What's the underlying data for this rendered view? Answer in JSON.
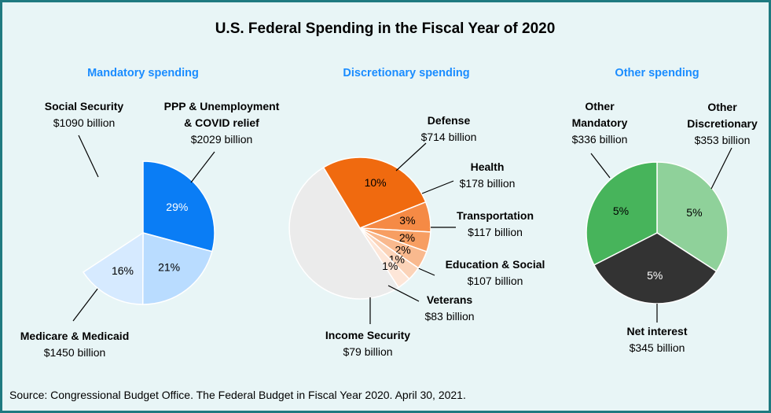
{
  "chart_data": {
    "type": "pie",
    "title": "U.S. Federal Spending in the Fiscal Year of 2020",
    "source": "Source: Congressional Budget Office. The Federal Budget in Fiscal Year 2020. April 30, 2021.",
    "charts": [
      {
        "id": "mandatory",
        "title": "Mandatory spending",
        "unit": "billion",
        "slices": [
          {
            "name_lines": [
              "PPP & Unemployment",
              "& COVID relief"
            ],
            "value_text": "$2029 billion",
            "value": 2029,
            "percent": "29%",
            "color": "#0a7df5",
            "pct_color": "#ffffff"
          },
          {
            "name_lines": [
              "Medicare & Medicaid"
            ],
            "value_text": "$1450 billion",
            "value": 1450,
            "percent": "21%",
            "color": "#b9dcff",
            "pct_color": "#000000"
          },
          {
            "name_lines": [
              "Social Security"
            ],
            "value_text": "$1090 billion",
            "value": 1090,
            "percent": "16%",
            "color": "#d6eaff",
            "pct_color": "#000000"
          }
        ]
      },
      {
        "id": "discretionary",
        "title": "Discretionary spending",
        "unit": "billion",
        "slices": [
          {
            "name_lines": [
              "Defense"
            ],
            "value_text": "$714 billion",
            "value": 714,
            "percent": "10%",
            "color": "#f06a0f",
            "pct_color": "#000000"
          },
          {
            "name_lines": [
              "Health"
            ],
            "value_text": "$178 billion",
            "value": 178,
            "percent": "3%",
            "color": "#f58a45",
            "pct_color": "#000000"
          },
          {
            "name_lines": [
              "Transportation"
            ],
            "value_text": "$117 billion",
            "value": 117,
            "percent": "2%",
            "color": "#f79e62",
            "pct_color": "#000000"
          },
          {
            "name_lines": [
              "Education & Social"
            ],
            "value_text": "$107 billion",
            "value": 107,
            "percent": "2%",
            "color": "#f9b98e",
            "pct_color": "#000000"
          },
          {
            "name_lines": [
              "Veterans"
            ],
            "value_text": "$83 billion",
            "value": 83,
            "percent": "1%",
            "color": "#fbd3b8",
            "pct_color": "#000000"
          },
          {
            "name_lines": [
              "Income Security"
            ],
            "value_text": "$79 billion",
            "value": 79,
            "percent": "1%",
            "color": "#fde6d8",
            "pct_color": "#000000"
          }
        ]
      },
      {
        "id": "other",
        "title": "Other spending",
        "unit": "billion",
        "slices": [
          {
            "name_lines": [
              "Other",
              "Discretionary"
            ],
            "value_text": "$353 billion",
            "value": 353,
            "percent": "5%",
            "color": "#8fd19a",
            "pct_color": "#000000"
          },
          {
            "name_lines": [
              "Net interest"
            ],
            "value_text": "$345 billion",
            "value": 345,
            "percent": "5%",
            "color": "#333333",
            "pct_color": "#ffffff"
          },
          {
            "name_lines": [
              "Other",
              "Mandatory"
            ],
            "value_text": "$336 billion",
            "value": 336,
            "percent": "5%",
            "color": "#47b45b",
            "pct_color": "#000000"
          }
        ]
      }
    ]
  }
}
